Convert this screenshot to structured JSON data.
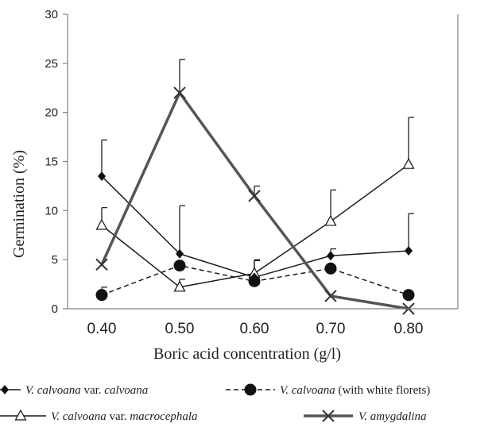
{
  "chart_data": {
    "type": "line",
    "title": "",
    "xlabel": "Boric acid concentration (g/l)",
    "ylabel": "Germination (%)",
    "ylim": [
      0,
      30
    ],
    "yticks": [
      "0",
      "5",
      "10",
      "15",
      "20",
      "25",
      "30"
    ],
    "categories": [
      "0.40",
      "0.50",
      "0.60",
      "0.70",
      "0.80"
    ],
    "grid": false,
    "legend_position": "bottom",
    "series": [
      {
        "name": "V. calvoana var. calvoana",
        "legend_parts": [
          {
            "text": "V. calvoana",
            "italic": true
          },
          {
            "text": " var. ",
            "italic": false
          },
          {
            "text": "calvoana",
            "italic": true
          }
        ],
        "values": [
          13.5,
          5.6,
          3.2,
          5.4,
          5.9
        ],
        "error_upper": [
          3.7,
          4.9,
          1.7,
          0.7,
          3.8
        ],
        "color": "#1a1a1a",
        "line_style": "solid",
        "marker": "diamond"
      },
      {
        "name": "V. calvoana (with white florets)",
        "legend_parts": [
          {
            "text": "V. calvoana",
            "italic": true
          },
          {
            "text": " (with white florets)",
            "italic": false
          }
        ],
        "values": [
          1.4,
          4.4,
          2.8,
          4.1,
          1.4
        ],
        "error_upper": [
          0.8,
          0,
          0,
          0,
          0
        ],
        "color": "#1a1a1a",
        "line_style": "dashed",
        "marker": "circle"
      },
      {
        "name": "V. calvoana var. macrocephala",
        "legend_parts": [
          {
            "text": "V. calvoana",
            "italic": true
          },
          {
            "text": " var. ",
            "italic": false
          },
          {
            "text": "macrocephala",
            "italic": true
          }
        ],
        "values": [
          8.5,
          2.2,
          3.6,
          8.9,
          14.7
        ],
        "error_upper": [
          1.8,
          0.8,
          1.4,
          3.2,
          4.8
        ],
        "color": "#1a1a1a",
        "line_style": "solid",
        "marker": "triangle-open"
      },
      {
        "name": "V. amygdalina",
        "legend_parts": [
          {
            "text": "V. amygdalina",
            "italic": true
          }
        ],
        "values": [
          4.5,
          22.0,
          11.5,
          1.3,
          0.0
        ],
        "error_upper": [
          0,
          3.4,
          1.0,
          0,
          0
        ],
        "color": "#555555",
        "line_style": "solid-thick",
        "marker": "x"
      }
    ]
  }
}
